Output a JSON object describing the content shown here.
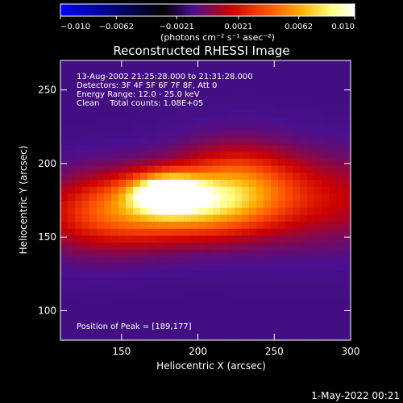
{
  "chart_data": {
    "type": "heatmap",
    "title": "Reconstructed RHESSI Image",
    "xlabel": "Heliocentric X (arcsec)",
    "ylabel": "Heliocentric Y (arcsec)",
    "xlim": [
      110,
      300
    ],
    "ylim": [
      80,
      270
    ],
    "x_ticks": [
      150,
      200,
      250,
      300
    ],
    "y_ticks": [
      100,
      150,
      200,
      250
    ],
    "colorbar": {
      "range": [
        -0.01,
        0.01
      ],
      "tick_values": [
        -0.01,
        -0.0062,
        -0.0021,
        0.0021,
        0.0062,
        0.01
      ],
      "tick_labels": [
        "−0.010",
        "−0.0062",
        "−0.0021",
        "0.0021",
        "0.0062",
        "0.010"
      ],
      "units": "(photons cm⁻² s⁻¹ asec⁻²)",
      "colors": [
        "#0000ff",
        "#000000",
        "#6a1aa8",
        "#ff0000",
        "#ff9900",
        "#ffffcc",
        "#ffffff"
      ]
    },
    "annotations": [
      "13-Aug-2002 21:25:28.000 to 21:31:28.000",
      "Detectors: 3F 4F 5F 6F 7F 8F, Att 0",
      "Energy Range: 12.0 - 25.0 keV",
      "Clean    Total counts: 1.08E+05"
    ],
    "peak_label": "Position of Peak = [189,177]",
    "peak": [
      189,
      177
    ],
    "sources": [
      {
        "x": 180,
        "y": 180,
        "sx": 15,
        "sy": 8,
        "amp": 0.0105
      },
      {
        "x": 200,
        "y": 172,
        "sx": 28,
        "sy": 14,
        "amp": 0.0045
      },
      {
        "x": 160,
        "y": 170,
        "sx": 30,
        "sy": 16,
        "amp": 0.004
      },
      {
        "x": 225,
        "y": 186,
        "sx": 26,
        "sy": 18,
        "amp": 0.0042
      },
      {
        "x": 265,
        "y": 176,
        "sx": 55,
        "sy": 20,
        "amp": 0.003
      },
      {
        "x": 130,
        "y": 165,
        "sx": 30,
        "sy": 18,
        "amp": 0.0025
      }
    ],
    "background": -0.0012
  },
  "footer": {
    "date": "1-May-2022 00:21"
  }
}
